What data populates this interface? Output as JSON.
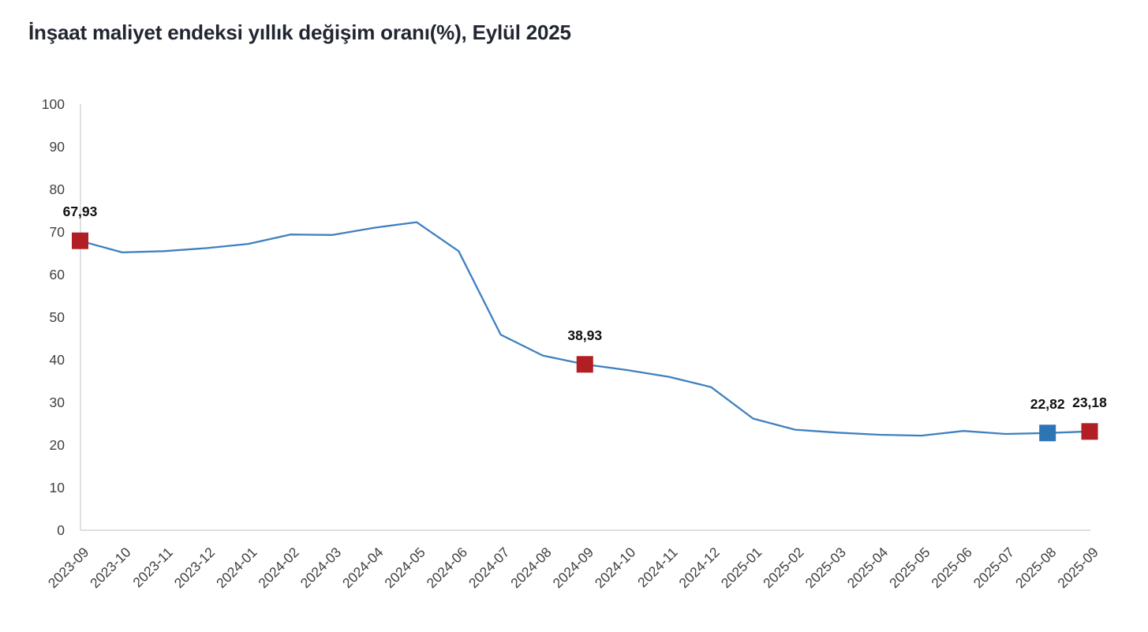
{
  "title": "İnşaat maliyet endeksi yıllık değişim oranı(%), Eylül 2025",
  "chart_data": {
    "type": "line",
    "title": "İnşaat maliyet endeksi yıllık değişim oranı(%), Eylül 2025",
    "xlabel": "",
    "ylabel": "",
    "ylim": [
      0,
      100
    ],
    "y_ticks": [
      0,
      10,
      20,
      30,
      40,
      50,
      60,
      70,
      80,
      90,
      100
    ],
    "grid": false,
    "legend": false,
    "categories": [
      "2023-09",
      "2023-10",
      "2023-11",
      "2023-12",
      "2024-01",
      "2024-02",
      "2024-03",
      "2024-04",
      "2024-05",
      "2024-06",
      "2024-07",
      "2024-08",
      "2024-09",
      "2024-10",
      "2024-11",
      "2024-12",
      "2025-01",
      "2025-02",
      "2025-03",
      "2025-04",
      "2025-05",
      "2025-06",
      "2025-07",
      "2025-08",
      "2025-09"
    ],
    "values": [
      67.93,
      65.2,
      65.5,
      66.2,
      67.2,
      69.4,
      69.3,
      71.0,
      72.3,
      65.5,
      45.9,
      41.0,
      38.93,
      37.6,
      36.0,
      33.6,
      26.2,
      23.6,
      22.9,
      22.4,
      22.2,
      23.3,
      22.6,
      22.82,
      23.18
    ],
    "markers": [
      {
        "category": "2023-09",
        "index": 0,
        "value": 67.93,
        "label": "67,93",
        "color": "#B11E23"
      },
      {
        "category": "2024-09",
        "index": 12,
        "value": 38.93,
        "label": "38,93",
        "color": "#B11E23"
      },
      {
        "category": "2025-08",
        "index": 23,
        "value": 22.82,
        "label": "22,82",
        "color": "#2E75B6"
      },
      {
        "category": "2025-09",
        "index": 24,
        "value": 23.18,
        "label": "23,18",
        "color": "#B11E23"
      }
    ],
    "colors": {
      "line": "#3F80BF",
      "marker_red": "#B11E23",
      "marker_blue": "#2E75B6",
      "axis_line": "#D9D9D9",
      "tick_text": "#404040",
      "data_label_text": "#111111",
      "title_text": "#222631"
    }
  }
}
